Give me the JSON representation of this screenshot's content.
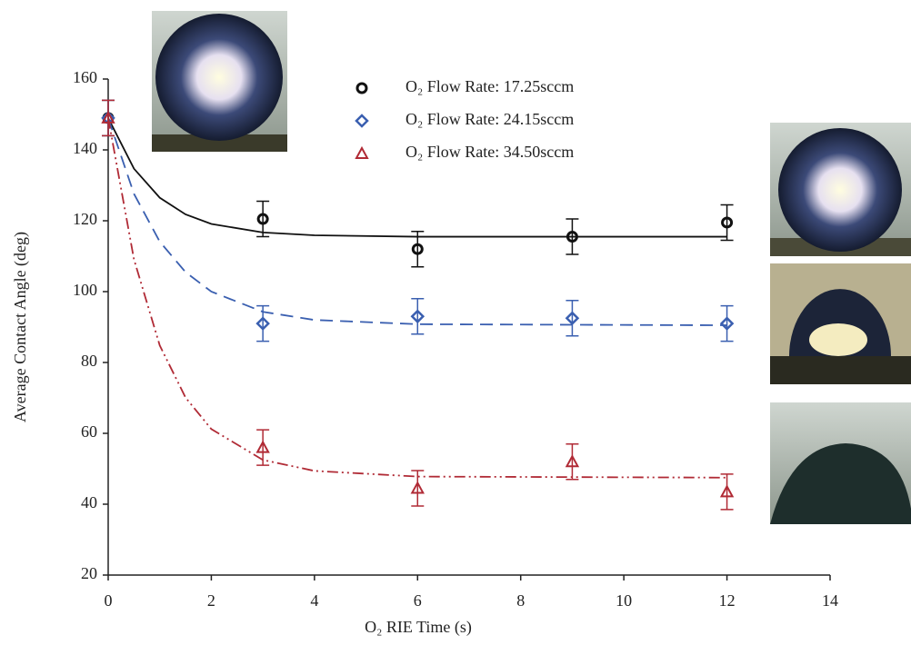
{
  "chart_data": {
    "type": "scatter",
    "x_label": "O₂ RIE Time (s)",
    "y_label": "Average Contact Angle (deg)",
    "xlim": [
      0,
      14
    ],
    "xticks": [
      0,
      2,
      4,
      6,
      8,
      10,
      12,
      14
    ],
    "ylim": [
      20,
      160
    ],
    "yticks": [
      20,
      40,
      60,
      80,
      100,
      120,
      140,
      160
    ],
    "grid": false,
    "x": [
      0,
      3,
      6,
      9,
      12
    ],
    "series": [
      {
        "name": "O₂ Flow Rate: 17.25sccm",
        "color": "#111111",
        "marker": "circle",
        "linestyle": "solid",
        "values": [
          149,
          120.5,
          112,
          115.5,
          119.5
        ],
        "errors": [
          5,
          5,
          5,
          5,
          5
        ],
        "fit": {
          "x": [
            0,
            0.5,
            1,
            1.5,
            2,
            3,
            4,
            6,
            12
          ],
          "values": [
            149,
            134.7,
            126.5,
            121.8,
            119.1,
            116.7,
            115.9,
            115.5,
            115.5
          ]
        }
      },
      {
        "name": "O₂ Flow Rate: 24.15sccm",
        "color": "#3a5fb0",
        "marker": "diamond",
        "linestyle": "dashed",
        "values": [
          149,
          91,
          93,
          92.5,
          91
        ],
        "errors": [
          5,
          5,
          5,
          5,
          5
        ],
        "fit": {
          "x": [
            0,
            0.5,
            1,
            1.5,
            2,
            3,
            4,
            6,
            12
          ],
          "values": [
            149,
            127.6,
            114.1,
            105.5,
            100.0,
            94.3,
            92.0,
            90.8,
            90.5
          ]
        }
      },
      {
        "name": "O₂ Flow Rate: 34.50sccm",
        "color": "#b02a35",
        "marker": "triangle",
        "linestyle": "dashdotdot",
        "values": [
          149,
          56,
          44.5,
          52,
          43.5
        ],
        "errors": [
          5,
          5,
          5,
          5,
          5
        ],
        "fit": {
          "x": [
            0,
            0.5,
            1,
            1.5,
            2,
            3,
            4,
            6,
            12
          ],
          "values": [
            149,
            109.1,
            84.8,
            70.1,
            61.2,
            52.5,
            49.4,
            47.8,
            47.5
          ]
        }
      }
    ]
  }
}
